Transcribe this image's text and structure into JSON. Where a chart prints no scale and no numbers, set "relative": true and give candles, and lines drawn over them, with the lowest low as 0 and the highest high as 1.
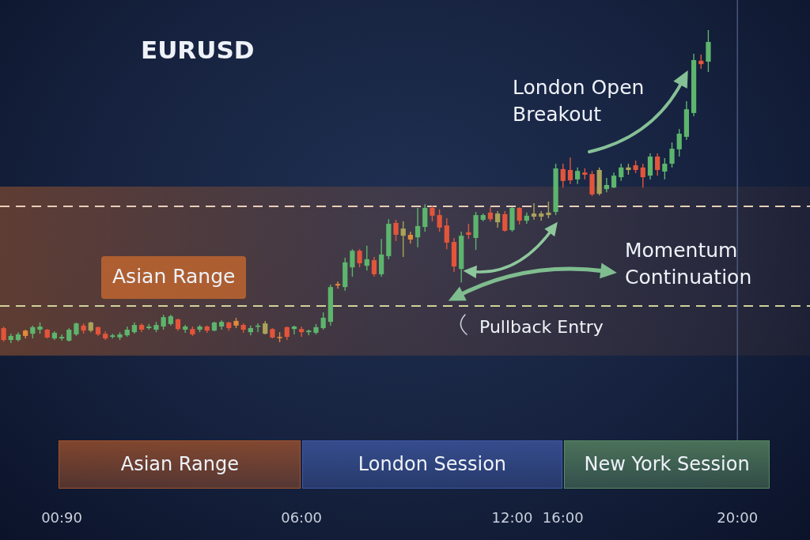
{
  "chart_data": {
    "type": "candlestick",
    "title": "EURUSD",
    "relative": true,
    "categories": [
      null,
      null,
      null,
      null,
      null,
      null,
      null,
      null,
      "00:90",
      null,
      null,
      null,
      null,
      null,
      null,
      null,
      null,
      null,
      null,
      null,
      null,
      null,
      null,
      null,
      null,
      null,
      null,
      null,
      null,
      null,
      null,
      null,
      null,
      null,
      null,
      null,
      null,
      null,
      null,
      null,
      null,
      "06:00",
      null,
      null,
      null,
      null,
      null,
      null,
      null,
      null,
      null,
      null,
      null,
      null,
      null,
      null,
      null,
      null,
      null,
      null,
      null,
      null,
      null,
      null,
      null,
      null,
      null,
      null,
      null,
      null,
      "12:00",
      null,
      null,
      null,
      null,
      null,
      null,
      "16:00",
      null,
      null,
      null,
      null,
      null,
      null,
      null,
      null,
      null,
      null,
      null,
      null,
      null,
      null,
      null,
      null,
      null,
      null,
      null,
      null,
      null,
      null,
      null,
      "20:00"
    ],
    "ohlc": [
      [
        0.048,
        0.053,
        0.005,
        0.01
      ],
      [
        0.01,
        0.03,
        0,
        0.023
      ],
      [
        0.01,
        0.035,
        0.005,
        0.028
      ],
      [
        0.04,
        0.043,
        0.015,
        0.023
      ],
      [
        0.03,
        0.056,
        0.015,
        0.051
      ],
      [
        0.043,
        0.066,
        0.03,
        0.053
      ],
      [
        0.043,
        0.045,
        0.015,
        0.018
      ],
      [
        0.015,
        0.038,
        0.01,
        0.033
      ],
      [
        0.015,
        0.028,
        0.008,
        0.02
      ],
      [
        0.008,
        0.048,
        0.005,
        0.043
      ],
      [
        0.028,
        0.066,
        0.023,
        0.063
      ],
      [
        0.056,
        0.063,
        0.03,
        0.04
      ],
      [
        0.04,
        0.068,
        0.035,
        0.066
      ],
      [
        0.051,
        0.053,
        0.023,
        0.028
      ],
      [
        0.03,
        0.038,
        0.01,
        0.015
      ],
      [
        0.02,
        0.03,
        0.015,
        0.025
      ],
      [
        0.018,
        0.035,
        0.01,
        0.028
      ],
      [
        0.025,
        0.053,
        0.02,
        0.043
      ],
      [
        0.035,
        0.066,
        0.03,
        0.058
      ],
      [
        0.058,
        0.063,
        0.035,
        0.043
      ],
      [
        0.048,
        0.061,
        0.043,
        0.053
      ],
      [
        0.043,
        0.068,
        0.035,
        0.058
      ],
      [
        0.053,
        0.091,
        0.043,
        0.083
      ],
      [
        0.061,
        0.091,
        0.056,
        0.086
      ],
      [
        0.076,
        0.078,
        0.04,
        0.045
      ],
      [
        0.043,
        0.058,
        0.033,
        0.053
      ],
      [
        0.045,
        0.053,
        0.023,
        0.028
      ],
      [
        0.043,
        0.058,
        0.035,
        0.053
      ],
      [
        0.053,
        0.056,
        0.033,
        0.04
      ],
      [
        0.04,
        0.068,
        0.038,
        0.066
      ],
      [
        0.053,
        0.073,
        0.043,
        0.068
      ],
      [
        0.066,
        0.068,
        0.04,
        0.048
      ],
      [
        0.071,
        0.081,
        0.048,
        0.056
      ],
      [
        0.058,
        0.063,
        0.033,
        0.043
      ],
      [
        0.035,
        0.056,
        0.025,
        0.048
      ],
      [
        0.053,
        0.063,
        0.035,
        0.056
      ],
      [
        0.03,
        0.071,
        0.028,
        0.063
      ],
      [
        0.045,
        0.048,
        0.015,
        0.018
      ],
      [
        0.02,
        0.035,
        0.003,
        0.018
      ],
      [
        0.051,
        0.053,
        0.01,
        0.02
      ],
      [
        0.045,
        0.056,
        0.028,
        0.053
      ],
      [
        0.045,
        0.053,
        0.02,
        0.035
      ],
      [
        0.035,
        0.043,
        0.025,
        0.04
      ],
      [
        0.033,
        0.061,
        0.028,
        0.051
      ],
      [
        0.048,
        0.098,
        0.043,
        0.081
      ],
      [
        0.068,
        0.187,
        0.056,
        0.179
      ],
      [
        0.189,
        0.197,
        0.174,
        0.184
      ],
      [
        0.179,
        0.273,
        0.167,
        0.258
      ],
      [
        0.242,
        0.3,
        0.212,
        0.295
      ],
      [
        0.295,
        0.3,
        0.242,
        0.255
      ],
      [
        0.247,
        0.311,
        0.232,
        0.268
      ],
      [
        0.265,
        0.275,
        0.212,
        0.22
      ],
      [
        0.22,
        0.333,
        0.212,
        0.283
      ],
      [
        0.278,
        0.396,
        0.268,
        0.381
      ],
      [
        0.384,
        0.394,
        0.326,
        0.346
      ],
      [
        0.343,
        0.389,
        0.275,
        0.366
      ],
      [
        0.346,
        0.356,
        0.318,
        0.331
      ],
      [
        0.338,
        0.432,
        0.306,
        0.374
      ],
      [
        0.371,
        0.444,
        0.356,
        0.432
      ],
      [
        0.432,
        0.439,
        0.389,
        0.407
      ],
      [
        0.409,
        0.427,
        0.356,
        0.369
      ],
      [
        0.376,
        0.399,
        0.3,
        0.321
      ],
      [
        0.323,
        0.336,
        0.227,
        0.245
      ],
      [
        0.237,
        0.356,
        0.194,
        0.343
      ],
      [
        0.354,
        0.381,
        0.333,
        0.346
      ],
      [
        0.336,
        0.419,
        0.298,
        0.409
      ],
      [
        0.394,
        0.414,
        0.389,
        0.409
      ],
      [
        0.417,
        0.434,
        0.389,
        0.396
      ],
      [
        0.386,
        0.422,
        0.369,
        0.414
      ],
      [
        0.412,
        0.422,
        0.356,
        0.359
      ],
      [
        0.361,
        0.434,
        0.356,
        0.432
      ],
      [
        0.432,
        0.434,
        0.379,
        0.391
      ],
      [
        0.391,
        0.417,
        0.381,
        0.407
      ],
      [
        0.404,
        0.447,
        0.394,
        0.414
      ],
      [
        0.404,
        0.422,
        0.391,
        0.414
      ],
      [
        0.409,
        0.452,
        0.399,
        0.417
      ],
      [
        0.419,
        0.573,
        0.409,
        0.558
      ],
      [
        0.556,
        0.573,
        0.497,
        0.518
      ],
      [
        0.553,
        0.593,
        0.508,
        0.52
      ],
      [
        0.523,
        0.561,
        0.508,
        0.55
      ],
      [
        0.545,
        0.558,
        0.523,
        0.538
      ],
      [
        0.54,
        0.55,
        0.47,
        0.475
      ],
      [
        0.477,
        0.561,
        0.472,
        0.553
      ],
      [
        0.492,
        0.528,
        0.482,
        0.505
      ],
      [
        0.497,
        0.545,
        0.495,
        0.535
      ],
      [
        0.53,
        0.573,
        0.518,
        0.561
      ],
      [
        0.553,
        0.573,
        0.538,
        0.561
      ],
      [
        0.568,
        0.583,
        0.543,
        0.553
      ],
      [
        0.561,
        0.573,
        0.497,
        0.53
      ],
      [
        0.535,
        0.606,
        0.523,
        0.596
      ],
      [
        0.596,
        0.606,
        0.535,
        0.553
      ],
      [
        0.548,
        0.591,
        0.523,
        0.573
      ],
      [
        0.573,
        0.641,
        0.561,
        0.621
      ],
      [
        0.619,
        0.684,
        0.596,
        0.669
      ],
      [
        0.659,
        0.773,
        0.649,
        0.747
      ],
      [
        0.735,
        0.924,
        0.725,
        0.904
      ],
      [
        0.902,
        0.922,
        0.876,
        0.891
      ],
      [
        0.899,
        1,
        0.866,
        0.962
      ],
      null,
      null,
      null,
      null
    ],
    "colors": [
      "#e2553b",
      "#5db56d",
      "#5db56d",
      "#e08a3c",
      "#5db56d",
      "#5db56d",
      "#e2553b",
      "#5db56d",
      "#5db56d",
      "#5db56d",
      "#5db56d",
      "#e2553b",
      "#a9a35a",
      "#e2553b",
      "#e2553b",
      "#5db56d",
      "#5db56d",
      "#5db56d",
      "#5db56d",
      "#e2553b",
      "#5db56d",
      "#5db56d",
      "#5db56d",
      "#5db56d",
      "#e2553b",
      "#5db56d",
      "#e2553b",
      "#5db56d",
      "#e2553b",
      "#5db56d",
      "#5db56d",
      "#e2553b",
      "#e08a3c",
      "#e2553b",
      "#5db56d",
      "#5db56d",
      "#a9a35a",
      "#e2553b",
      "#e08a3c",
      "#e2553b",
      "#5db56d",
      "#e2553b",
      "#5db56d",
      "#5db56d",
      "#5db56d",
      "#5db56d",
      "#e08a3c",
      "#5db56d",
      "#5db56d",
      "#e2553b",
      "#5db56d",
      "#e2553b",
      "#5db56d",
      "#5db56d",
      "#e2553b",
      "#a9a35a",
      "#e08a3c",
      "#5db56d",
      "#5db56d",
      "#e2553b",
      "#e2553b",
      "#e2553b",
      "#e2553b",
      "#5db56d",
      "#e2553b",
      "#5db56d",
      "#5db56d",
      "#e2553b",
      "#a9a35a",
      "#e2553b",
      "#5db56d",
      "#e2553b",
      "#5db56d",
      "#a9a35a",
      "#a9a35a",
      "#a9a35a",
      "#5db56d",
      "#e2553b",
      "#e2553b",
      "#5db56d",
      "#e2553b",
      "#e2553b",
      "#a9a35a",
      "#5db56d",
      "#5db56d",
      "#5db56d",
      "#a9a35a",
      "#e2553b",
      "#e2553b",
      "#5db56d",
      "#e2553b",
      "#5db56d",
      "#5db56d",
      "#5db56d",
      "#5db56d",
      "#5db56d",
      "#e2553b",
      "#5db56d",
      null,
      null,
      null,
      null
    ],
    "bands": [
      {
        "axis": "y",
        "from": -0.04,
        "to": 0.5,
        "label": "Asian Range",
        "color": "#c8692e"
      }
    ],
    "ref_lines": [
      {
        "axis": "y",
        "value": 0.437,
        "color": "#e9cdb8",
        "line_style": "dashed"
      },
      {
        "axis": "y",
        "value": 0.119,
        "color": "#cfd29a",
        "line_style": "dashed"
      },
      {
        "axis": "x",
        "value": "20:00",
        "color": "#56668a",
        "line_style": "solid"
      }
    ],
    "annotations": [
      "London Open Breakout",
      "Momentum Continuation",
      "Pullback Entry",
      "Asian Range",
      "London Session",
      "New York Session"
    ]
  }
}
